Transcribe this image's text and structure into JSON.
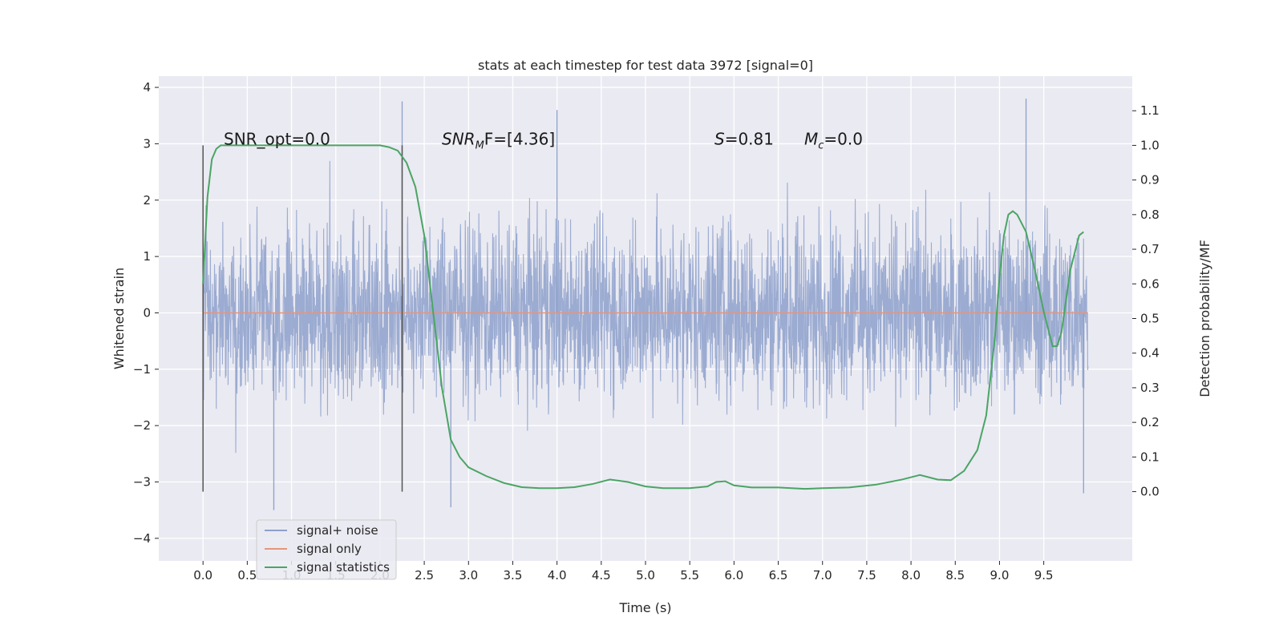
{
  "chart_data": {
    "type": "line",
    "title": "stats at each timestep for test data 3972 [signal=0]",
    "xlabel": "Time (s)",
    "ylabel_left": "Whitened strain",
    "ylabel_right": "Detection probability/MF",
    "xlim": [
      -0.5,
      10.5
    ],
    "ylim_left": [
      -4.4,
      4.2
    ],
    "ylim_right": [
      -0.2,
      1.2
    ],
    "x_ticks": [
      "0.0",
      "0.5",
      "1.0",
      "1.5",
      "2.0",
      "2.5",
      "3.0",
      "3.5",
      "4.0",
      "4.5",
      "5.0",
      "5.5",
      "6.0",
      "6.5",
      "7.0",
      "7.5",
      "8.0",
      "8.5",
      "9.0",
      "9.5"
    ],
    "y_left_ticks": [
      "4",
      "3",
      "2",
      "1",
      "0",
      "−1",
      "−2",
      "−3",
      "−4"
    ],
    "y_right_ticks": [
      "1.1",
      "1.0",
      "0.9",
      "0.8",
      "0.7",
      "0.6",
      "0.5",
      "0.4",
      "0.3",
      "0.2",
      "0.1",
      "0.0"
    ],
    "grid": true,
    "legend_position": "lower-left",
    "annotations": [
      {
        "text": "SNR_opt=0.0"
      },
      {
        "text": "SNR",
        "sub": "M",
        "tail": "F=[4.36]"
      },
      {
        "text": "S",
        "tail": "=0.81"
      },
      {
        "text": "M",
        "sub": "c",
        "tail": "=0.0"
      }
    ],
    "vertical_markers": [
      0.0,
      2.25
    ],
    "series": [
      {
        "name": "signal+ noise",
        "axis": "left",
        "color": "#8da0cb",
        "x_range": [
          0.0,
          10.0
        ],
        "typical_band": [
          -2.2,
          2.4
        ],
        "extremes": [
          {
            "x": 0.8,
            "y": -3.5
          },
          {
            "x": 2.25,
            "y": 3.75
          },
          {
            "x": 2.8,
            "y": -3.45
          },
          {
            "x": 4.0,
            "y": 3.6
          },
          {
            "x": 9.3,
            "y": 3.8
          },
          {
            "x": 9.95,
            "y": -3.2
          }
        ]
      },
      {
        "name": "signal only",
        "axis": "left",
        "color": "#e5957a",
        "x": [
          0.0,
          10.0
        ],
        "y": [
          0.0,
          0.0
        ]
      },
      {
        "name": "signal statistics",
        "axis": "right",
        "color": "#4aa564",
        "x": [
          0.0,
          0.05,
          0.1,
          0.15,
          0.2,
          0.3,
          0.5,
          1.0,
          1.5,
          2.0,
          2.1,
          2.2,
          2.3,
          2.4,
          2.5,
          2.6,
          2.7,
          2.8,
          2.9,
          3.0,
          3.2,
          3.4,
          3.6,
          3.8,
          4.0,
          4.2,
          4.4,
          4.6,
          4.8,
          5.0,
          5.2,
          5.5,
          5.7,
          5.8,
          5.9,
          6.0,
          6.2,
          6.5,
          6.8,
          7.0,
          7.3,
          7.6,
          7.9,
          8.1,
          8.3,
          8.45,
          8.6,
          8.75,
          8.85,
          8.95,
          9.0,
          9.05,
          9.1,
          9.15,
          9.2,
          9.3,
          9.4,
          9.5,
          9.55,
          9.6,
          9.65,
          9.7,
          9.8,
          9.9,
          9.95
        ],
        "y": [
          0.6,
          0.85,
          0.96,
          0.99,
          1.0,
          1.0,
          1.0,
          1.0,
          1.0,
          1.0,
          0.995,
          0.985,
          0.95,
          0.88,
          0.74,
          0.52,
          0.3,
          0.15,
          0.1,
          0.07,
          0.045,
          0.025,
          0.013,
          0.01,
          0.01,
          0.013,
          0.022,
          0.035,
          0.028,
          0.015,
          0.01,
          0.01,
          0.015,
          0.028,
          0.03,
          0.018,
          0.012,
          0.012,
          0.008,
          0.01,
          0.012,
          0.02,
          0.035,
          0.048,
          0.035,
          0.033,
          0.06,
          0.12,
          0.22,
          0.45,
          0.62,
          0.74,
          0.8,
          0.81,
          0.8,
          0.75,
          0.64,
          0.52,
          0.47,
          0.42,
          0.42,
          0.46,
          0.64,
          0.74,
          0.75
        ]
      }
    ]
  }
}
